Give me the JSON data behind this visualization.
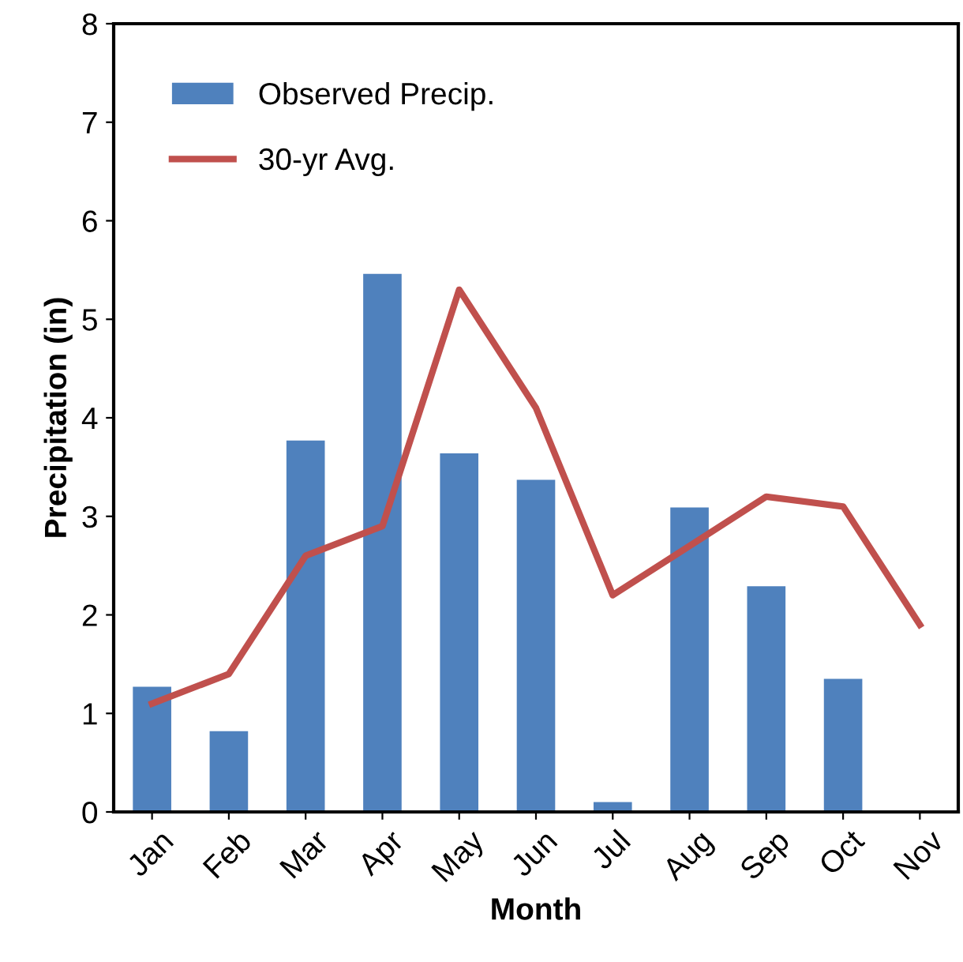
{
  "chart_data": {
    "type": "bar",
    "xlabel": "Month",
    "ylabel": "Precipitation (in)",
    "categories": [
      "Jan",
      "Feb",
      "Mar",
      "Apr",
      "May",
      "Jun",
      "Jul",
      "Aug",
      "Sep",
      "Oct",
      "Nov"
    ],
    "series": [
      {
        "name": "Observed Precip.",
        "color": "#4f81bd",
        "values": [
          1.27,
          0.82,
          3.77,
          5.46,
          3.64,
          3.37,
          0.1,
          3.09,
          2.29,
          1.35,
          null
        ]
      },
      {
        "name": "30-yr Avg.",
        "type": "line",
        "color": "#c0504d",
        "values": [
          1.1,
          1.4,
          2.6,
          2.9,
          5.3,
          4.1,
          2.2,
          2.7,
          3.2,
          3.1,
          1.9
        ]
      }
    ],
    "ylim": [
      0,
      8
    ],
    "yticks": [
      0,
      1,
      2,
      3,
      4,
      5,
      6,
      7,
      8
    ],
    "grid": false,
    "legend": "top left",
    "marker": "none",
    "line_style": "solid"
  }
}
